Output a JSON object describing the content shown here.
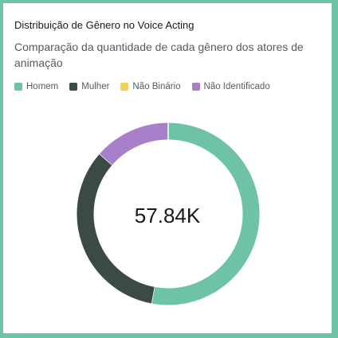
{
  "title": "Distribuição de Gênero no Voice Acting",
  "subtitle": "Comparação da quantidade de cada gênero dos atores de animação",
  "center_label": "57.84K",
  "colors": {
    "frame": "#6dc2a8",
    "homem": "#6dc2a8",
    "mulher": "#3b4a45",
    "nao_binario": "#f3d05a",
    "nao_identificado": "#a880c9"
  },
  "chart_data": {
    "type": "pie",
    "donut": true,
    "total_label": "57.84K",
    "legend_position": "top-left",
    "series": [
      {
        "name": "Homem",
        "value": 30630,
        "color": "#6dc2a8"
      },
      {
        "name": "Mulher",
        "value": 19380,
        "color": "#3b4a45"
      },
      {
        "name": "Não Binário",
        "value": 0,
        "color": "#f3d05a"
      },
      {
        "name": "Não Identificado",
        "value": 7830,
        "color": "#a880c9"
      }
    ]
  }
}
